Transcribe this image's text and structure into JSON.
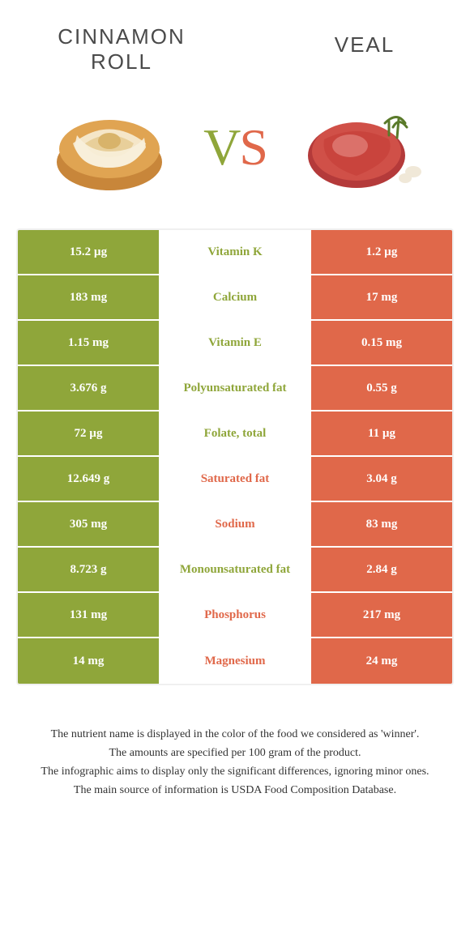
{
  "header": {
    "left_title": "CINNAMON ROLL",
    "right_title": "VEAL",
    "vs_v": "V",
    "vs_s": "S"
  },
  "colors": {
    "left": "#8fa63a",
    "right": "#e0684a",
    "row_border": "#ffffff",
    "table_border": "#f0f0f0",
    "text": "#333333"
  },
  "rows": [
    {
      "left": "15.2 µg",
      "label": "Vitamin K",
      "right": "1.2 µg",
      "winner": "left"
    },
    {
      "left": "183 mg",
      "label": "Calcium",
      "right": "17 mg",
      "winner": "left"
    },
    {
      "left": "1.15 mg",
      "label": "Vitamin E",
      "right": "0.15 mg",
      "winner": "left"
    },
    {
      "left": "3.676 g",
      "label": "Polyunsaturated fat",
      "right": "0.55 g",
      "winner": "left"
    },
    {
      "left": "72 µg",
      "label": "Folate, total",
      "right": "11 µg",
      "winner": "left"
    },
    {
      "left": "12.649 g",
      "label": "Saturated fat",
      "right": "3.04 g",
      "winner": "right"
    },
    {
      "left": "305 mg",
      "label": "Sodium",
      "right": "83 mg",
      "winner": "right"
    },
    {
      "left": "8.723 g",
      "label": "Monounsaturated fat",
      "right": "2.84 g",
      "winner": "left"
    },
    {
      "left": "131 mg",
      "label": "Phosphorus",
      "right": "217 mg",
      "winner": "right"
    },
    {
      "left": "14 mg",
      "label": "Magnesium",
      "right": "24 mg",
      "winner": "right"
    }
  ],
  "footer": {
    "line1": "The nutrient name is displayed in the color of the food we considered as 'winner'.",
    "line2": "The amounts are specified per 100 gram of the product.",
    "line3": "The infographic aims to display only the significant differences, ignoring minor ones.",
    "line4": "The main source of information is USDA Food Composition Database."
  }
}
